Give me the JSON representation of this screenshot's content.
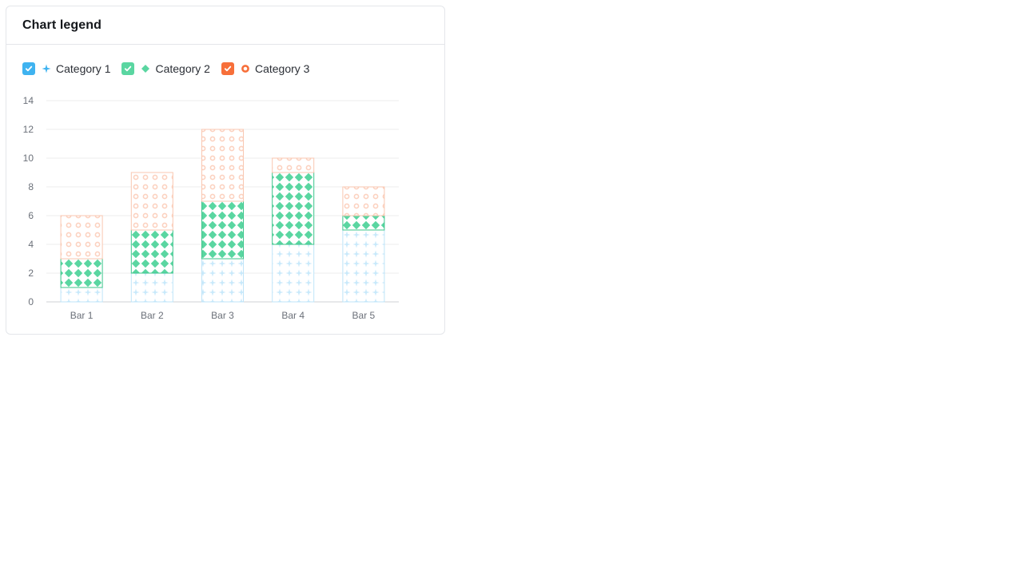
{
  "card": {
    "title": "Chart legend"
  },
  "legend": {
    "items": [
      {
        "label": "Category 1",
        "checked": true,
        "color": "#3fb3f0",
        "symbol": "sparkle-icon"
      },
      {
        "label": "Category 2",
        "checked": true,
        "color": "#5ad6a1",
        "symbol": "diamond-icon"
      },
      {
        "label": "Category 3",
        "checked": true,
        "color": "#f76f3a",
        "symbol": "ring-icon"
      }
    ]
  },
  "chart_data": {
    "type": "bar",
    "stacked": true,
    "categories": [
      "Bar 1",
      "Bar 2",
      "Bar 3",
      "Bar 4",
      "Bar 5"
    ],
    "series": [
      {
        "name": "Category 1",
        "values": [
          1,
          2,
          3,
          4,
          5
        ],
        "color": "#3fb3f0",
        "pattern": "sparkle"
      },
      {
        "name": "Category 2",
        "values": [
          2,
          3,
          4,
          5,
          1
        ],
        "color": "#5ad6a1",
        "pattern": "diamond"
      },
      {
        "name": "Category 3",
        "values": [
          3,
          4,
          5,
          1,
          2
        ],
        "color": "#f76f3a",
        "pattern": "ring"
      }
    ],
    "ylim": [
      0,
      14
    ],
    "yticks": [
      0,
      2,
      4,
      6,
      8,
      10,
      12,
      14
    ],
    "grid": true,
    "legend_position": "top-left"
  }
}
